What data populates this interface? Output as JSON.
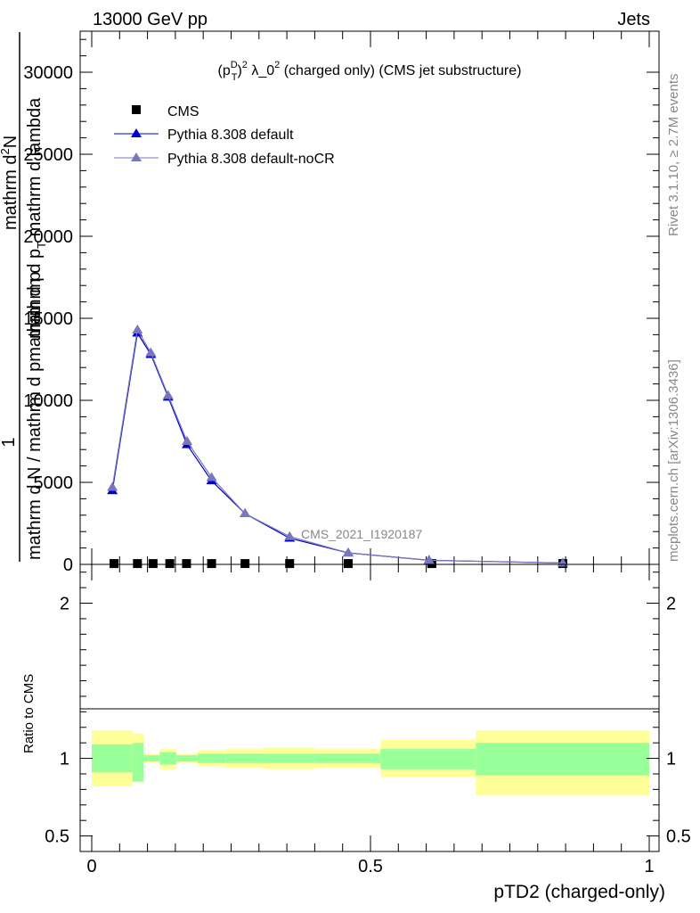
{
  "header": {
    "left": "13000 GeV pp",
    "right": "Jets"
  },
  "side_labels": {
    "rivet": "Rivet 3.1.10, ≥ 2.7M events",
    "mcplots": "mcplots.cern.ch [arXiv:1306.3436]"
  },
  "watermark": "CMS_2021_I1920187",
  "colors": {
    "data": "#000000",
    "pythia_default": "#0000cc",
    "pythia_nocr": "#7777bb",
    "band_inner": "#99ff99",
    "band_outer": "#ffff99"
  },
  "chart_data": [
    {
      "type": "scatter",
      "title_parts": {
        "base": "(p",
        "sup_d": "D",
        "sub_t": "T",
        "close": ")",
        "sup_2": "2",
        "rest": " λ_0",
        "sup_2b": "2",
        "tail": " (charged only) (CMS jet substructure)"
      },
      "ylabel_parts": {
        "one": "1",
        "num": "mathrm d",
        "num_sup": "2",
        "num_n": "N",
        "den_a": "mathrm d p",
        "den_sub": "T",
        "den_b": " mathrm d lambda",
        "axis": "mathrm d N / mathrm d pmathrm d p"
      },
      "xlim": [
        0,
        1
      ],
      "ylim": [
        0,
        32500
      ],
      "yticks": [
        0,
        5000,
        10000,
        15000,
        20000,
        25000,
        30000
      ],
      "ytick_labels": [
        "0",
        "5000",
        "10000",
        "15000",
        "20000",
        "25000",
        "30000"
      ],
      "legend": [
        "CMS",
        "Pythia 8.308 default",
        "Pythia 8.308 default-noCR"
      ],
      "series": [
        {
          "name": "CMS",
          "x": [
            0.04,
            0.082,
            0.11,
            0.14,
            0.17,
            0.215,
            0.275,
            0.355,
            0.46,
            0.61,
            0.845
          ],
          "values": [
            50,
            50,
            50,
            50,
            50,
            50,
            50,
            50,
            50,
            50,
            50
          ]
        },
        {
          "name": "Pythia 8.308 default",
          "x": [
            0.037,
            0.082,
            0.106,
            0.137,
            0.171,
            0.215,
            0.275,
            0.355,
            0.46,
            0.605,
            0.845
          ],
          "values": [
            4500,
            14100,
            12800,
            10200,
            7300,
            5100,
            3100,
            1600,
            700,
            250,
            80
          ]
        },
        {
          "name": "Pythia 8.308 default-noCR",
          "x": [
            0.037,
            0.082,
            0.106,
            0.137,
            0.171,
            0.215,
            0.275,
            0.355,
            0.46,
            0.605,
            0.845
          ],
          "values": [
            4700,
            14300,
            12900,
            10300,
            7500,
            5300,
            3100,
            1700,
            700,
            250,
            80
          ]
        }
      ]
    },
    {
      "type": "area",
      "ylabel": "Ratio to CMS",
      "xlabel": "pTD2 (charged-only)",
      "xlim": [
        0,
        1
      ],
      "ylim": [
        0.4,
        2.25
      ],
      "xticks": [
        0,
        0.5,
        1
      ],
      "xtick_labels": [
        "0",
        "0.5",
        "1"
      ],
      "yticks": [
        0.5,
        1,
        2
      ],
      "ytick_labels": [
        "0.5",
        "1",
        "2"
      ],
      "bins": [
        {
          "lo": 0.0,
          "hi": 0.073,
          "inner": [
            0.91,
            1.09
          ],
          "outer": [
            0.82,
            1.18
          ]
        },
        {
          "lo": 0.073,
          "hi": 0.093,
          "inner": [
            0.85,
            1.1
          ],
          "outer": [
            0.85,
            1.16
          ]
        },
        {
          "lo": 0.093,
          "hi": 0.122,
          "inner": [
            0.98,
            1.02
          ],
          "outer": [
            0.97,
            1.03
          ]
        },
        {
          "lo": 0.122,
          "hi": 0.152,
          "inner": [
            0.96,
            1.04
          ],
          "outer": [
            0.93,
            1.06
          ]
        },
        {
          "lo": 0.152,
          "hi": 0.19,
          "inner": [
            0.98,
            1.02
          ],
          "outer": [
            0.97,
            1.03
          ]
        },
        {
          "lo": 0.19,
          "hi": 0.24,
          "inner": [
            0.97,
            1.03
          ],
          "outer": [
            0.95,
            1.05
          ]
        },
        {
          "lo": 0.24,
          "hi": 0.31,
          "inner": [
            0.97,
            1.03
          ],
          "outer": [
            0.94,
            1.06
          ]
        },
        {
          "lo": 0.31,
          "hi": 0.4,
          "inner": [
            0.97,
            1.03
          ],
          "outer": [
            0.93,
            1.07
          ]
        },
        {
          "lo": 0.4,
          "hi": 0.518,
          "inner": [
            0.97,
            1.03
          ],
          "outer": [
            0.94,
            1.06
          ]
        },
        {
          "lo": 0.518,
          "hi": 0.689,
          "inner": [
            0.93,
            1.06
          ],
          "outer": [
            0.88,
            1.12
          ]
        },
        {
          "lo": 0.689,
          "hi": 1.0,
          "inner": [
            0.89,
            1.1
          ],
          "outer": [
            0.76,
            1.18
          ]
        }
      ]
    }
  ]
}
